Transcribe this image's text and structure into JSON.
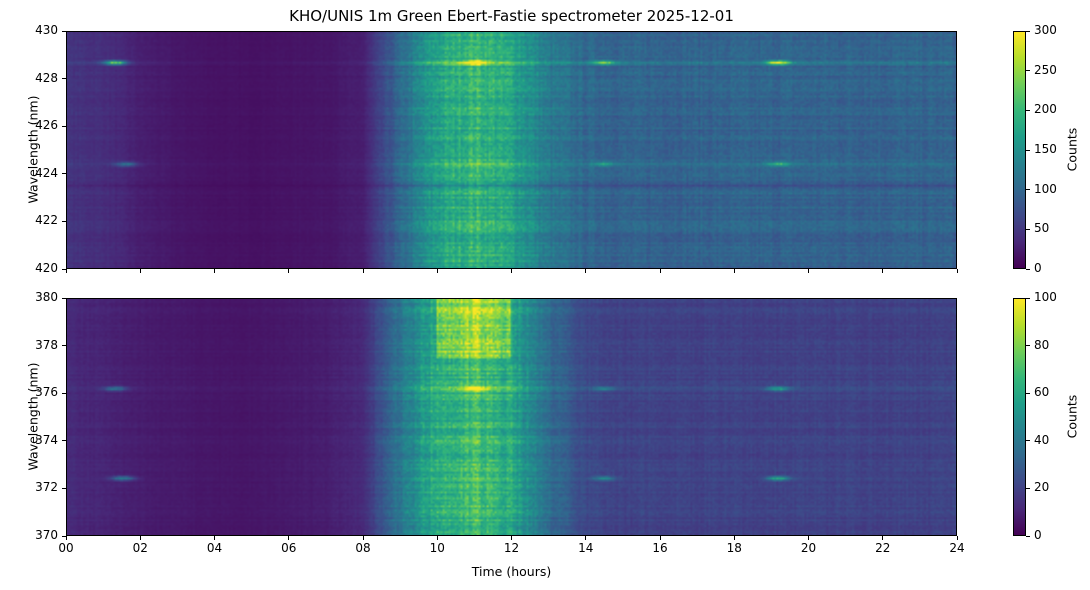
{
  "chart_data": [
    {
      "type": "heatmap",
      "title": "KHO/UNIS 1m Green Ebert-Fastie spectrometer 2025-12-01",
      "xlabel": "Time (hours)",
      "ylabel": "Wavelength (nm)",
      "xlim": [
        0,
        24
      ],
      "ylim": [
        420,
        430
      ],
      "yticks": [
        "420",
        "422",
        "424",
        "426",
        "428",
        "430"
      ],
      "colorbar": {
        "label": "Counts",
        "clim": [
          0,
          300
        ],
        "ticks": [
          "0",
          "50",
          "100",
          "150",
          "200",
          "250",
          "300"
        ]
      },
      "colormap": "viridis",
      "background_hourly": [
        45,
        40,
        25,
        18,
        15,
        14,
        16,
        18,
        25,
        100,
        170,
        200,
        175,
        120,
        100,
        95,
        95,
        95,
        95,
        95,
        95,
        95,
        95,
        95,
        95
      ],
      "emission_lines": [
        {
          "wavelength": 428.7,
          "baseline": 110,
          "events": [
            {
              "time": 1.3,
              "peak": 300
            },
            {
              "time": 11.0,
              "peak": 270
            },
            {
              "time": 14.5,
              "peak": 230
            },
            {
              "time": 19.2,
              "peak": 300
            }
          ]
        },
        {
          "wavelength": 424.4,
          "baseline": 60,
          "events": [
            {
              "time": 1.6,
              "peak": 140
            },
            {
              "time": 14.5,
              "peak": 120
            },
            {
              "time": 19.2,
              "peak": 150
            }
          ]
        }
      ],
      "absorption_lines": [
        423.5
      ]
    },
    {
      "type": "heatmap",
      "xlabel": "Time (hours)",
      "ylabel": "Wavelength (nm)",
      "xlim": [
        0,
        24
      ],
      "ylim": [
        370,
        380
      ],
      "xticks": [
        "00",
        "02",
        "04",
        "06",
        "08",
        "10",
        "12",
        "14",
        "16",
        "18",
        "20",
        "22",
        "24"
      ],
      "yticks": [
        "370",
        "372",
        "374",
        "376",
        "378",
        "380"
      ],
      "colorbar": {
        "label": "Counts",
        "clim": [
          0,
          100
        ],
        "ticks": [
          "0",
          "20",
          "40",
          "60",
          "80",
          "100"
        ]
      },
      "colormap": "viridis",
      "background_hourly": [
        12,
        10,
        8,
        7,
        6,
        6,
        7,
        8,
        12,
        40,
        62,
        70,
        60,
        35,
        22,
        20,
        20,
        20,
        20,
        20,
        20,
        20,
        20,
        20,
        20
      ],
      "emission_lines": [
        {
          "wavelength": 376.2,
          "baseline": 25,
          "events": [
            {
              "time": 1.3,
              "peak": 55
            },
            {
              "time": 11.0,
              "peak": 65
            },
            {
              "time": 14.5,
              "peak": 45
            },
            {
              "time": 19.2,
              "peak": 60
            }
          ]
        },
        {
          "wavelength": 372.4,
          "baseline": 20,
          "events": [
            {
              "time": 1.5,
              "peak": 55
            },
            {
              "time": 14.5,
              "peak": 45
            },
            {
              "time": 19.2,
              "peak": 60
            }
          ]
        }
      ],
      "absorption_lines": []
    }
  ]
}
